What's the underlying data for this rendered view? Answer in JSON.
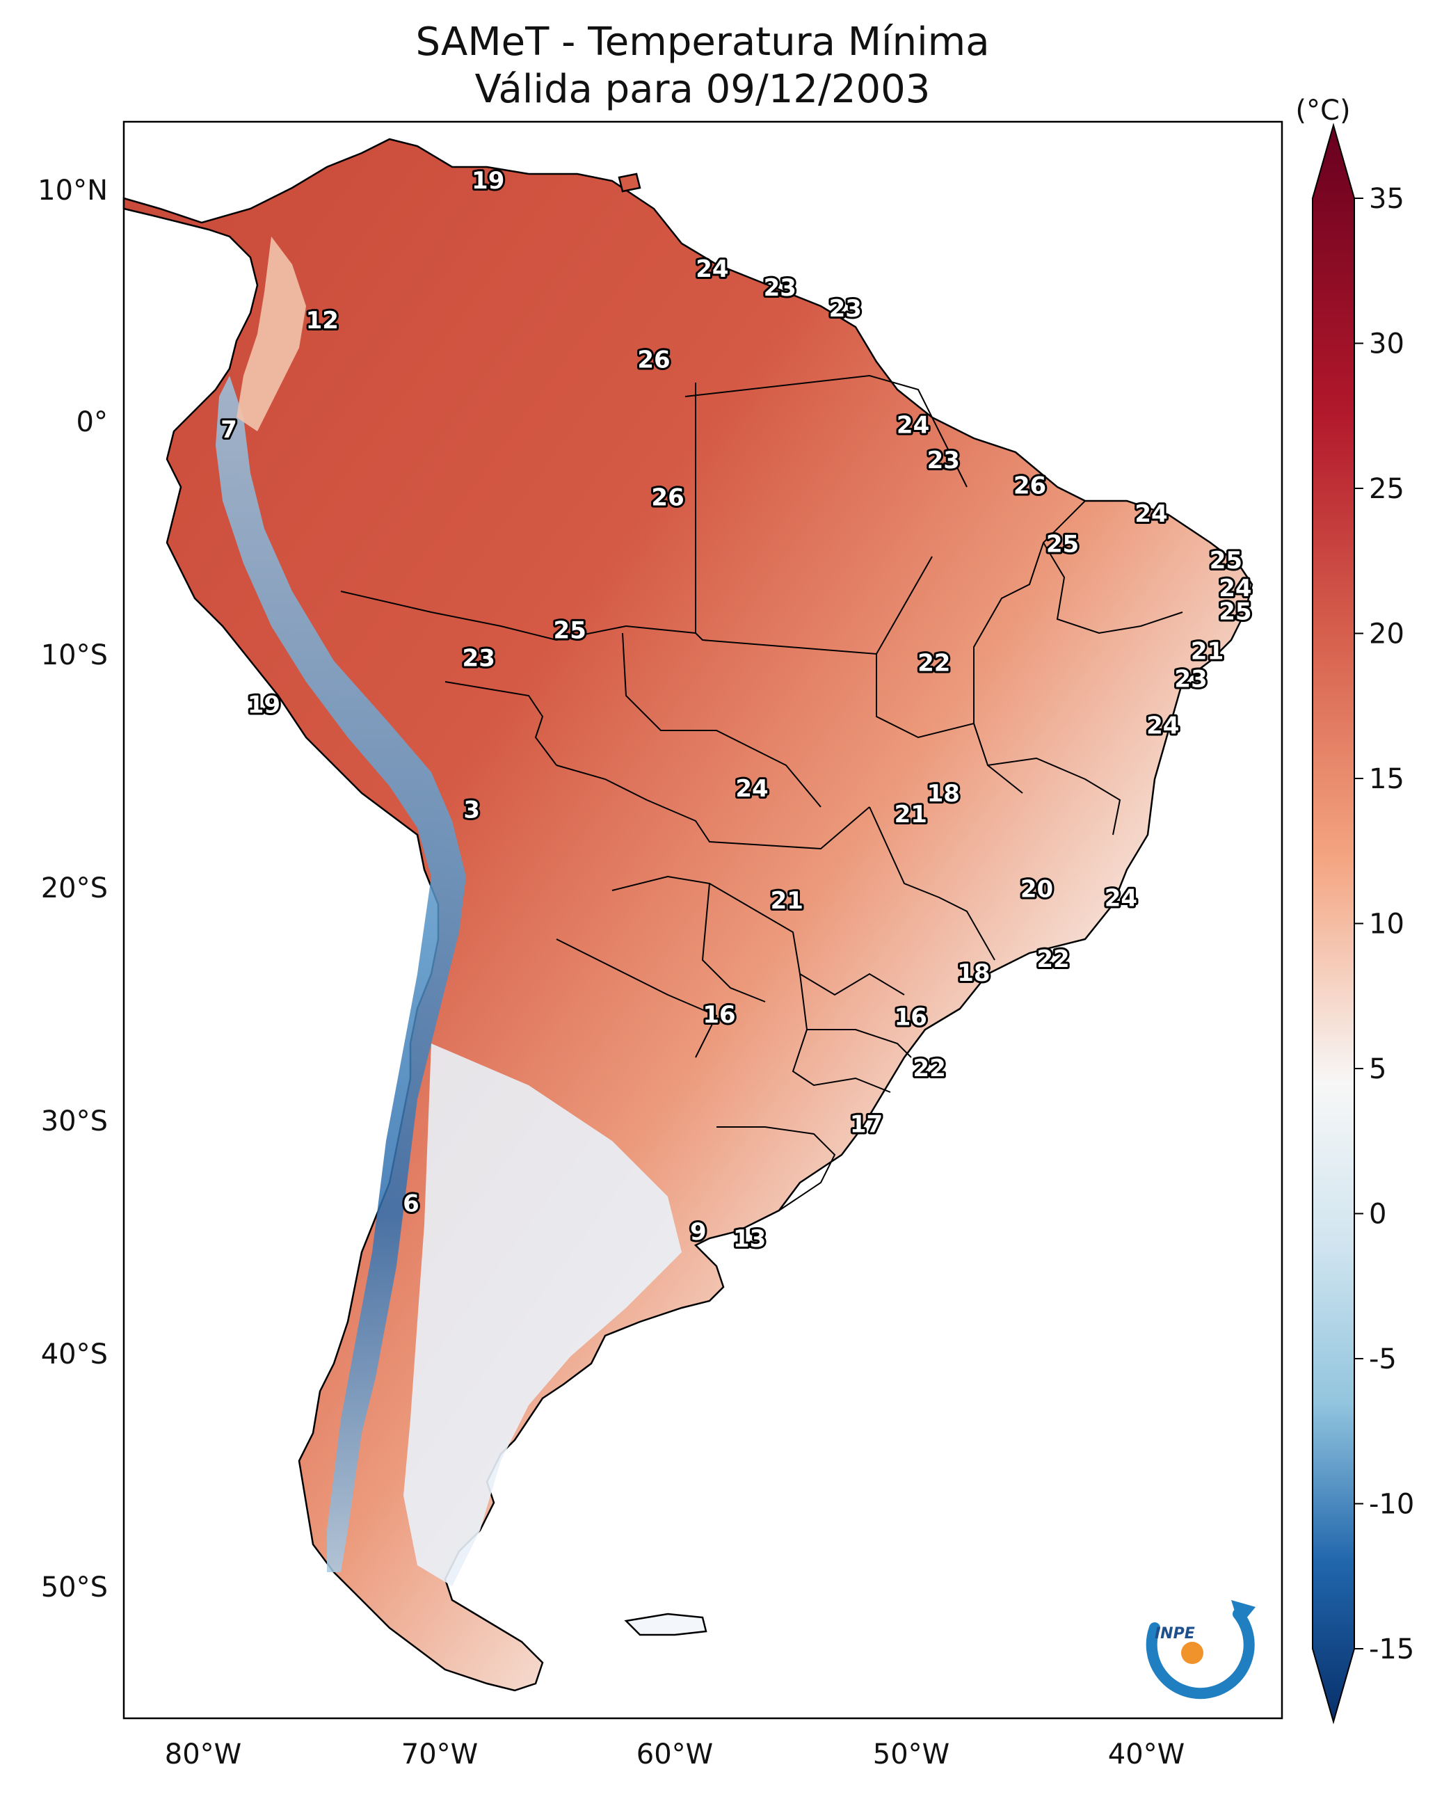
{
  "title": {
    "line1": "SAMeT - Temperatura Mínima",
    "line2": "Válida para 09/12/2003"
  },
  "axes": {
    "lon_ticks": [
      "80°W",
      "70°W",
      "60°W",
      "50°W",
      "40°W"
    ],
    "lat_ticks": [
      "10°N",
      "0°",
      "10°S",
      "20°S",
      "30°S",
      "40°S",
      "50°S"
    ]
  },
  "colorbar": {
    "unit": "(°C)",
    "ticks": [
      "35",
      "30",
      "25",
      "20",
      "15",
      "10",
      "5",
      "0",
      "-5",
      "-10",
      "-15"
    ],
    "range": [
      -15,
      35
    ],
    "colors": {
      "cold_extreme": "#08306b",
      "cold": "#2166ac",
      "cool": "#92c5de",
      "neutral": "#f7f7f7",
      "warm": "#f4a582",
      "hot": "#d6604d",
      "hot_extreme": "#67001f"
    }
  },
  "stations": [
    {
      "value": "19",
      "lon": -67.4,
      "lat": 10.5
    },
    {
      "value": "24",
      "lon": -57.8,
      "lat": 6.7
    },
    {
      "value": "23",
      "lon": -54.9,
      "lat": 5.9
    },
    {
      "value": "23",
      "lon": -52.1,
      "lat": 5.0
    },
    {
      "value": "12",
      "lon": -74.5,
      "lat": 4.5
    },
    {
      "value": "26",
      "lon": -60.3,
      "lat": 2.8
    },
    {
      "value": "7",
      "lon": -78.5,
      "lat": -0.2
    },
    {
      "value": "24",
      "lon": -49.2,
      "lat": 0.0
    },
    {
      "value": "23",
      "lon": -47.9,
      "lat": -1.5
    },
    {
      "value": "26",
      "lon": -44.2,
      "lat": -2.6
    },
    {
      "value": "26",
      "lon": -59.7,
      "lat": -3.1
    },
    {
      "value": "24",
      "lon": -39.0,
      "lat": -3.8
    },
    {
      "value": "25",
      "lon": -42.8,
      "lat": -5.1
    },
    {
      "value": "25",
      "lon": -35.8,
      "lat": -5.8
    },
    {
      "value": "24",
      "lon": -35.4,
      "lat": -7.0
    },
    {
      "value": "25",
      "lon": -35.4,
      "lat": -8.0
    },
    {
      "value": "25",
      "lon": -63.9,
      "lat": -8.8
    },
    {
      "value": "21",
      "lon": -36.6,
      "lat": -9.7
    },
    {
      "value": "23",
      "lon": -67.8,
      "lat": -10.0
    },
    {
      "value": "22",
      "lon": -48.3,
      "lat": -10.2
    },
    {
      "value": "23",
      "lon": -37.3,
      "lat": -10.9
    },
    {
      "value": "19",
      "lon": -77.0,
      "lat": -12.0
    },
    {
      "value": "24",
      "lon": -38.5,
      "lat": -12.9
    },
    {
      "value": "24",
      "lon": -56.1,
      "lat": -15.6
    },
    {
      "value": "18",
      "lon": -47.9,
      "lat": -15.8
    },
    {
      "value": "3",
      "lon": -68.1,
      "lat": -16.5
    },
    {
      "value": "21",
      "lon": -49.3,
      "lat": -16.7
    },
    {
      "value": "20",
      "lon": -43.9,
      "lat": -19.9
    },
    {
      "value": "24",
      "lon": -40.3,
      "lat": -20.3
    },
    {
      "value": "21",
      "lon": -54.6,
      "lat": -20.4
    },
    {
      "value": "22",
      "lon": -43.2,
      "lat": -22.9
    },
    {
      "value": "18",
      "lon": -46.6,
      "lat": -23.5
    },
    {
      "value": "16",
      "lon": -57.5,
      "lat": -25.3
    },
    {
      "value": "16",
      "lon": -49.3,
      "lat": -25.4
    },
    {
      "value": "22",
      "lon": -48.5,
      "lat": -27.6
    },
    {
      "value": "17",
      "lon": -51.2,
      "lat": -30.0
    },
    {
      "value": "6",
      "lon": -70.7,
      "lat": -33.4
    },
    {
      "value": "9",
      "lon": -58.4,
      "lat": -34.6
    },
    {
      "value": "13",
      "lon": -56.2,
      "lat": -34.9
    }
  ],
  "logo": {
    "text": "INPE"
  }
}
